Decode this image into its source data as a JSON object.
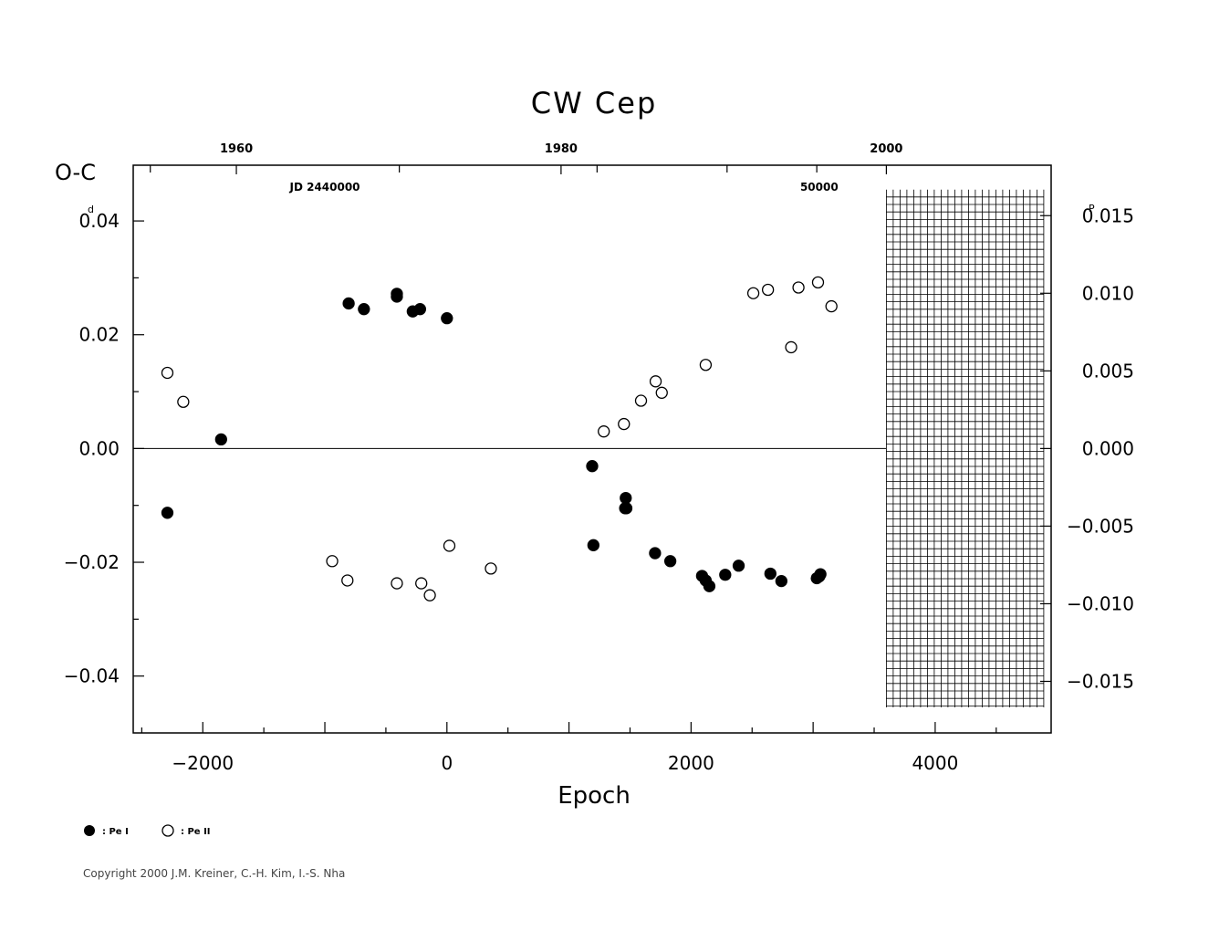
{
  "chart_data": {
    "type": "scatter",
    "title": "CW  Cep",
    "xlabel": "Epoch",
    "ylabel": "O-C",
    "ylabel_unit_sup": "d",
    "right_axis_unit_sup": "P",
    "xlim": [
      -2570,
      4950
    ],
    "ylim": [
      -0.05,
      0.0498
    ],
    "x_ticks": [
      -2000,
      0,
      2000,
      4000
    ],
    "x_tick_labels": [
      "−2000",
      "0",
      "2000",
      "4000"
    ],
    "y_ticks": [
      0.04,
      0.02,
      0.0,
      -0.02,
      -0.04
    ],
    "y_tick_labels": [
      "0.04",
      "0.02",
      "0.00",
      "−0.02",
      "−0.04"
    ],
    "right_ticks": [
      0.015,
      0.01,
      0.005,
      0.0,
      -0.005,
      -0.01,
      -0.015
    ],
    "right_tick_labels": [
      "0.015",
      "0.010",
      "0.005",
      "0.000",
      "−0.005",
      "−0.010",
      "−0.015"
    ],
    "period_days": 2.729,
    "top_axis": {
      "year_epochs": [
        -1725,
        935,
        3600
      ],
      "year_labels": [
        "1960",
        "1980",
        "2000"
      ],
      "jd_label": "JD  2440000",
      "jd_label_epoch": -1000,
      "jd50000_label": "50000",
      "jd50000_epoch": 3050
    },
    "grid": "hatched region at right (epoch > 3600)",
    "series": [
      {
        "name": "Pe I",
        "marker": "filled circle",
        "x": [
          -2290,
          -1850,
          -805,
          -680,
          -410,
          -410,
          -280,
          -220,
          0,
          1190,
          1200,
          1460,
          1465,
          1470,
          1705,
          1830,
          2090,
          2120,
          2150,
          2280,
          2390,
          2650,
          2740,
          3030,
          3050,
          3060
        ],
        "y": [
          -0.0113,
          0.0016,
          0.0255,
          0.0245,
          0.0272,
          0.0267,
          0.0241,
          0.0245,
          0.0229,
          -0.0031,
          -0.017,
          -0.0105,
          -0.0087,
          -0.0105,
          -0.0184,
          -0.0198,
          -0.0224,
          -0.0232,
          -0.0242,
          -0.0222,
          -0.0206,
          -0.022,
          -0.0233,
          -0.0228,
          -0.0225,
          -0.0221
        ]
      },
      {
        "name": "Pe II",
        "marker": "open circle",
        "x": [
          -2290,
          -2160,
          -940,
          -815,
          -410,
          -210,
          -140,
          20,
          360,
          1285,
          1450,
          1590,
          1710,
          1760,
          2120,
          2510,
          2630,
          2820,
          2880,
          3040,
          3150
        ],
        "y": [
          0.0133,
          0.0082,
          -0.0198,
          -0.0232,
          -0.0237,
          -0.0237,
          -0.0258,
          -0.0171,
          -0.0211,
          0.003,
          0.0043,
          0.0084,
          0.0118,
          0.0098,
          0.0147,
          0.0273,
          0.0279,
          0.0178,
          0.0283,
          0.0292,
          0.025
        ]
      }
    ]
  },
  "legend": {
    "pe1_label": ": Pe I",
    "pe2_label": ": Pe II"
  },
  "copyright": "Copyright 2000 J.M. Kreiner, C.-H. Kim, I.-S. Nha"
}
